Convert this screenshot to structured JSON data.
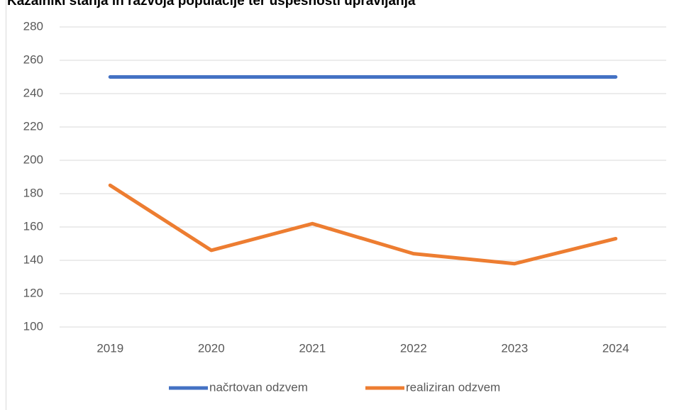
{
  "chart_data": {
    "type": "line",
    "title": "Kazalniki stanja in razvoja populacije ter uspešnosti upravljanja",
    "categories": [
      "2019",
      "2020",
      "2021",
      "2022",
      "2023",
      "2024"
    ],
    "series": [
      {
        "name": "načrtovan odzvem",
        "color": "#4472c4",
        "values": [
          250,
          250,
          250,
          250,
          250,
          250
        ]
      },
      {
        "name": "realiziran odzvem",
        "color": "#ed7d31",
        "values": [
          185,
          146,
          162,
          144,
          138,
          153
        ]
      }
    ],
    "ylim": [
      100,
      280
    ],
    "yticks": [
      100,
      120,
      140,
      160,
      180,
      200,
      220,
      240,
      260,
      280
    ],
    "grid": true,
    "legend": "bottom"
  }
}
